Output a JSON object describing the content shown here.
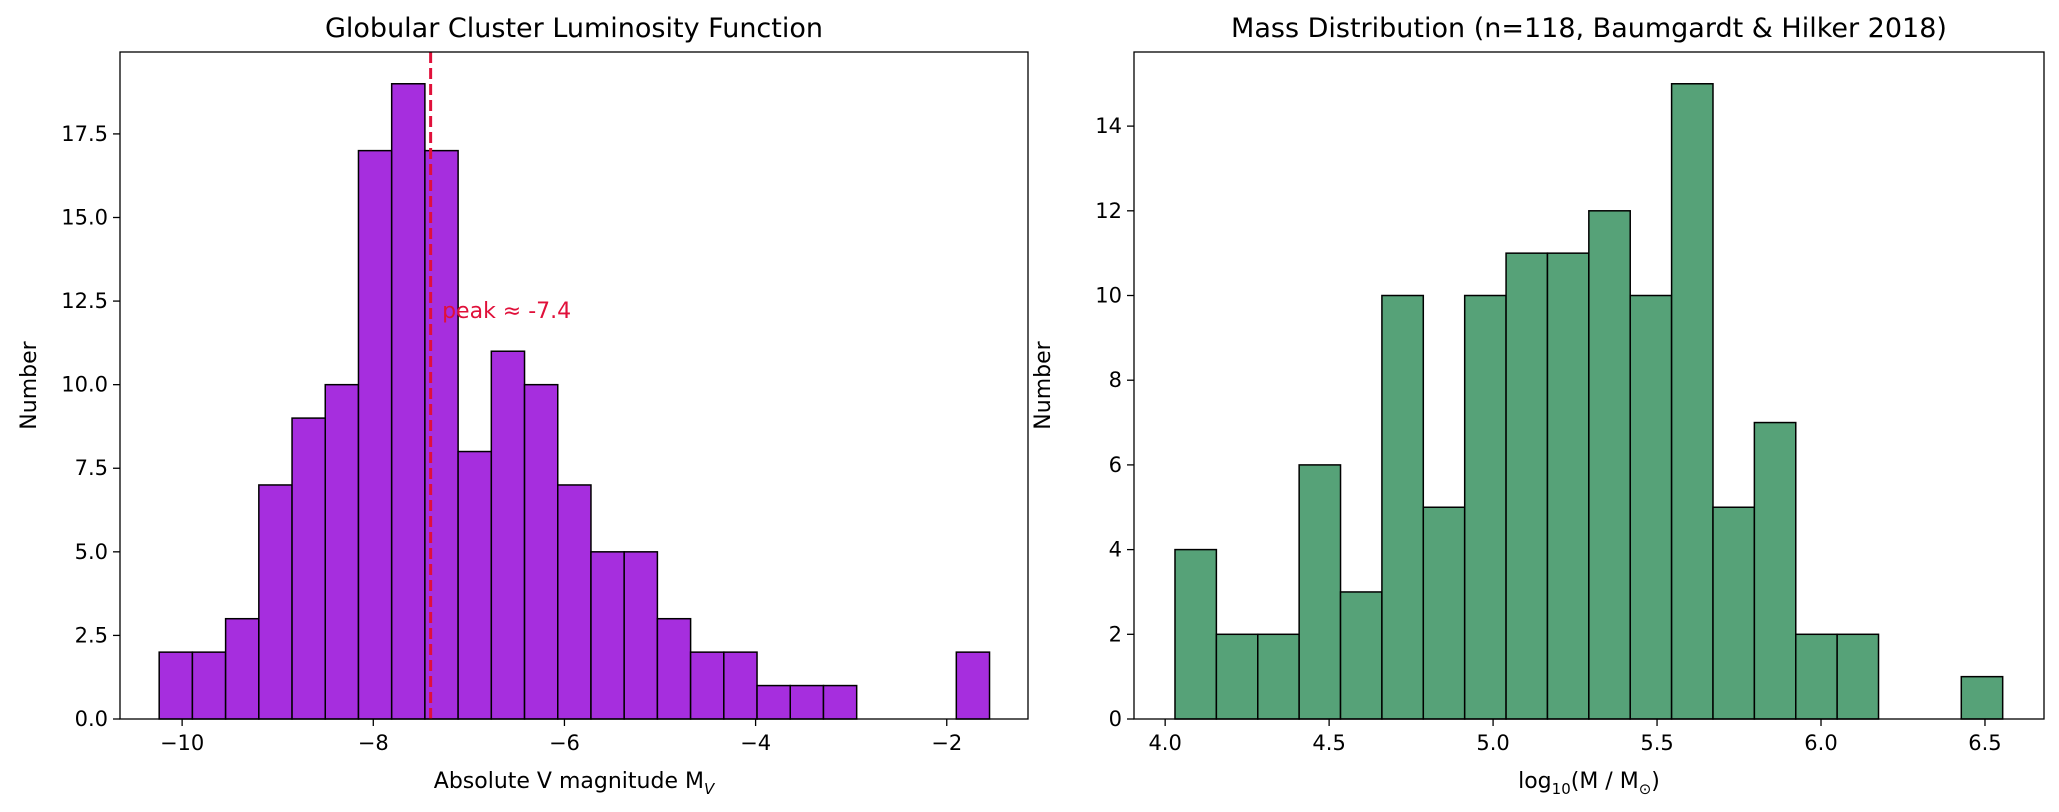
{
  "chart_data": [
    {
      "type": "bar",
      "title": "Globular Cluster Luminosity Function",
      "xlabel": "Absolute V magnitude M",
      "xlabel_sub": "V",
      "ylabel": "Number",
      "xlim": [
        -10.65,
        -1.15
      ],
      "ylim": [
        0,
        19.95
      ],
      "xticks": [
        -10,
        -8,
        -6,
        -4,
        -2
      ],
      "xtick_labels": [
        "−10",
        "−8",
        "−6",
        "−4",
        "−2"
      ],
      "yticks": [
        0,
        2.5,
        5,
        7.5,
        10,
        12.5,
        15,
        17.5
      ],
      "ytick_labels": [
        "0.0",
        "2.5",
        "5.0",
        "7.5",
        "10.0",
        "12.5",
        "15.0",
        "17.5"
      ],
      "bin_start": -10.24,
      "bin_width": 0.3475,
      "values": [
        2,
        2,
        3,
        7,
        9,
        10,
        17,
        19,
        17,
        8,
        11,
        10,
        7,
        5,
        5,
        3,
        2,
        2,
        1,
        1,
        1,
        0,
        0,
        0,
        2
      ],
      "color": "#a62ede",
      "edge_color": "#000000",
      "vline": {
        "x": -7.4,
        "color": "#e0103a",
        "style": "dashed"
      },
      "annotation": {
        "text": "peak ≈ -7.4",
        "x": -7.28,
        "y": 12.0,
        "color": "#e0103a"
      },
      "grid": false
    },
    {
      "type": "bar",
      "title": "Mass Distribution (n=118, Baumgardt & Hilker 2018)",
      "xlabel_parts": [
        "log",
        "10",
        "(M / M",
        "⊙",
        ")"
      ],
      "ylabel": "Number",
      "xlim": [
        3.905,
        6.68
      ],
      "ylim": [
        0,
        15.75
      ],
      "xticks": [
        4.0,
        4.5,
        5.0,
        5.5,
        6.0,
        6.5
      ],
      "xtick_labels": [
        "4.0",
        "4.5",
        "5.0",
        "5.5",
        "6.0",
        "6.5"
      ],
      "yticks": [
        0,
        2,
        4,
        6,
        8,
        10,
        12,
        14
      ],
      "ytick_labels": [
        "0",
        "2",
        "4",
        "6",
        "8",
        "10",
        "12",
        "14"
      ],
      "bin_start": 4.03,
      "bin_width": 0.1262,
      "values": [
        4,
        2,
        2,
        6,
        3,
        10,
        5,
        10,
        11,
        11,
        12,
        10,
        15,
        5,
        7,
        2,
        2,
        0,
        0,
        1
      ],
      "color": "#56a278",
      "edge_color": "#000000",
      "grid": false
    }
  ]
}
